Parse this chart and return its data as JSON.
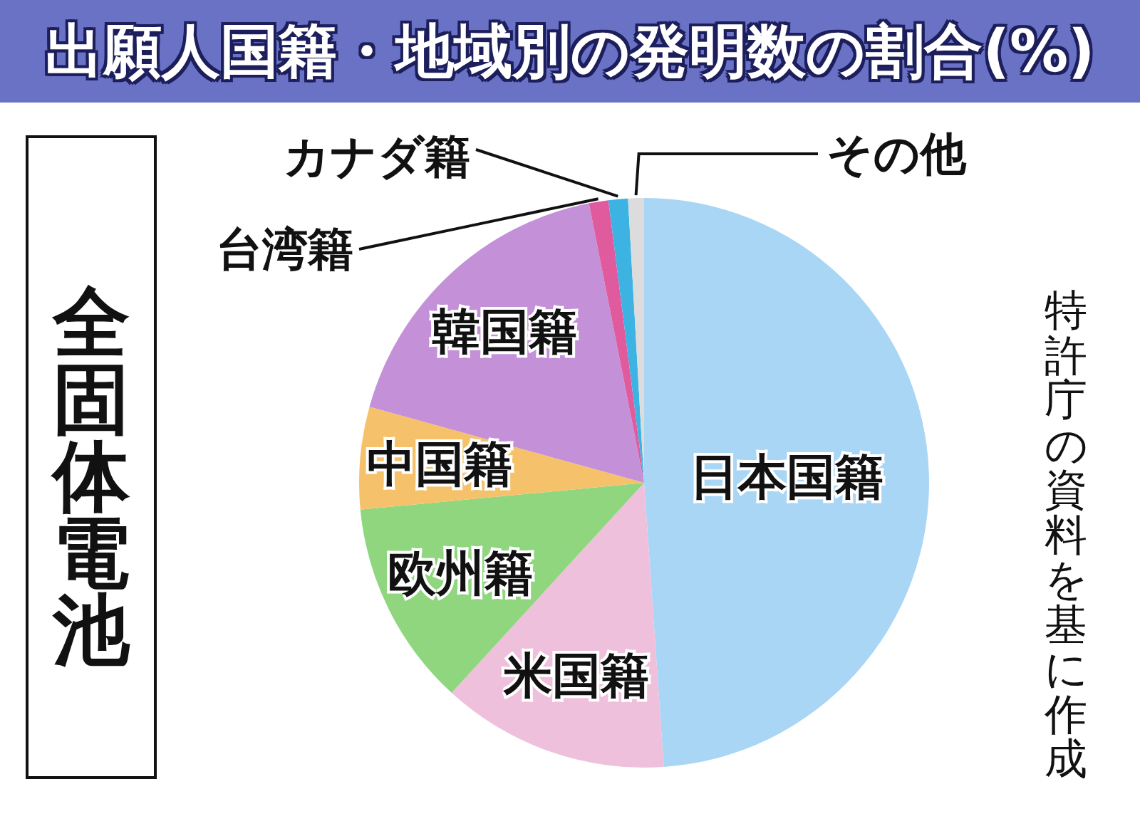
{
  "chart_data": {
    "type": "pie",
    "title": "出願人国籍・地域別の発明数の割合(%)",
    "subtitle": "全固体電池",
    "categories": [
      "日本国籍",
      "米国籍",
      "欧州籍",
      "中国籍",
      "韓国籍",
      "台湾籍",
      "カナダ籍",
      "その他"
    ],
    "values": [
      48.9,
      12.9,
      11.7,
      5.8,
      17.6,
      1.1,
      1.1,
      0.9
    ],
    "colors": [
      "#a9d6f5",
      "#efc0dc",
      "#8fd67f",
      "#f5c26b",
      "#c490d8",
      "#e05a9e",
      "#3db3e3",
      "#dcdcdc"
    ],
    "annotations": [
      "特許庁の資料を基に作成"
    ]
  }
}
